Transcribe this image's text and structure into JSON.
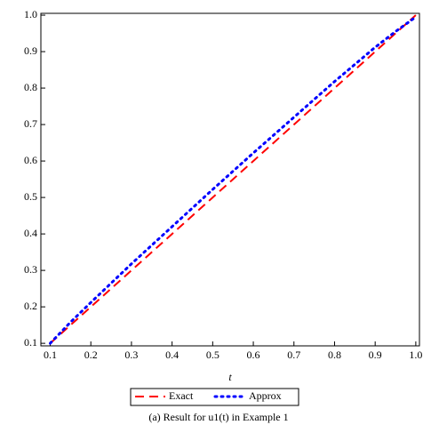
{
  "chart_data": {
    "type": "line",
    "x": [
      0.1,
      0.15,
      0.2,
      0.25,
      0.3,
      0.35,
      0.4,
      0.45,
      0.5,
      0.55,
      0.6,
      0.65,
      0.7,
      0.75,
      0.8,
      0.85,
      0.9,
      0.95,
      1.0
    ],
    "series": [
      {
        "name": "Exact",
        "color": "#ff0000",
        "dash": "10,6",
        "values": [
          0.1,
          0.15,
          0.2,
          0.25,
          0.3,
          0.35,
          0.4,
          0.45,
          0.5,
          0.55,
          0.6,
          0.65,
          0.7,
          0.75,
          0.8,
          0.85,
          0.9,
          0.95,
          1.0
        ]
      },
      {
        "name": "Approx",
        "color": "#0000ff",
        "dash": "2,5",
        "values": [
          0.1,
          0.158,
          0.212,
          0.265,
          0.318,
          0.369,
          0.42,
          0.471,
          0.522,
          0.572,
          0.622,
          0.671,
          0.72,
          0.769,
          0.818,
          0.865,
          0.912,
          0.955,
          0.995
        ]
      }
    ],
    "xlabel": "t",
    "caption": "(a) Result for u1(t) in Example 1",
    "xlim": [
      0.077,
      1.009
    ],
    "ylim": [
      0.093,
      1.005
    ],
    "xticks": [
      0.1,
      0.2,
      0.3,
      0.4,
      0.5,
      0.6,
      0.7,
      0.8,
      0.9,
      {
        "value": 1,
        "label": "1.0"
      }
    ],
    "yticks": [
      0.1,
      0.2,
      0.3,
      0.4,
      0.5,
      0.6,
      0.7,
      0.8,
      0.9,
      {
        "value": 1,
        "label": "1.0"
      }
    ]
  }
}
